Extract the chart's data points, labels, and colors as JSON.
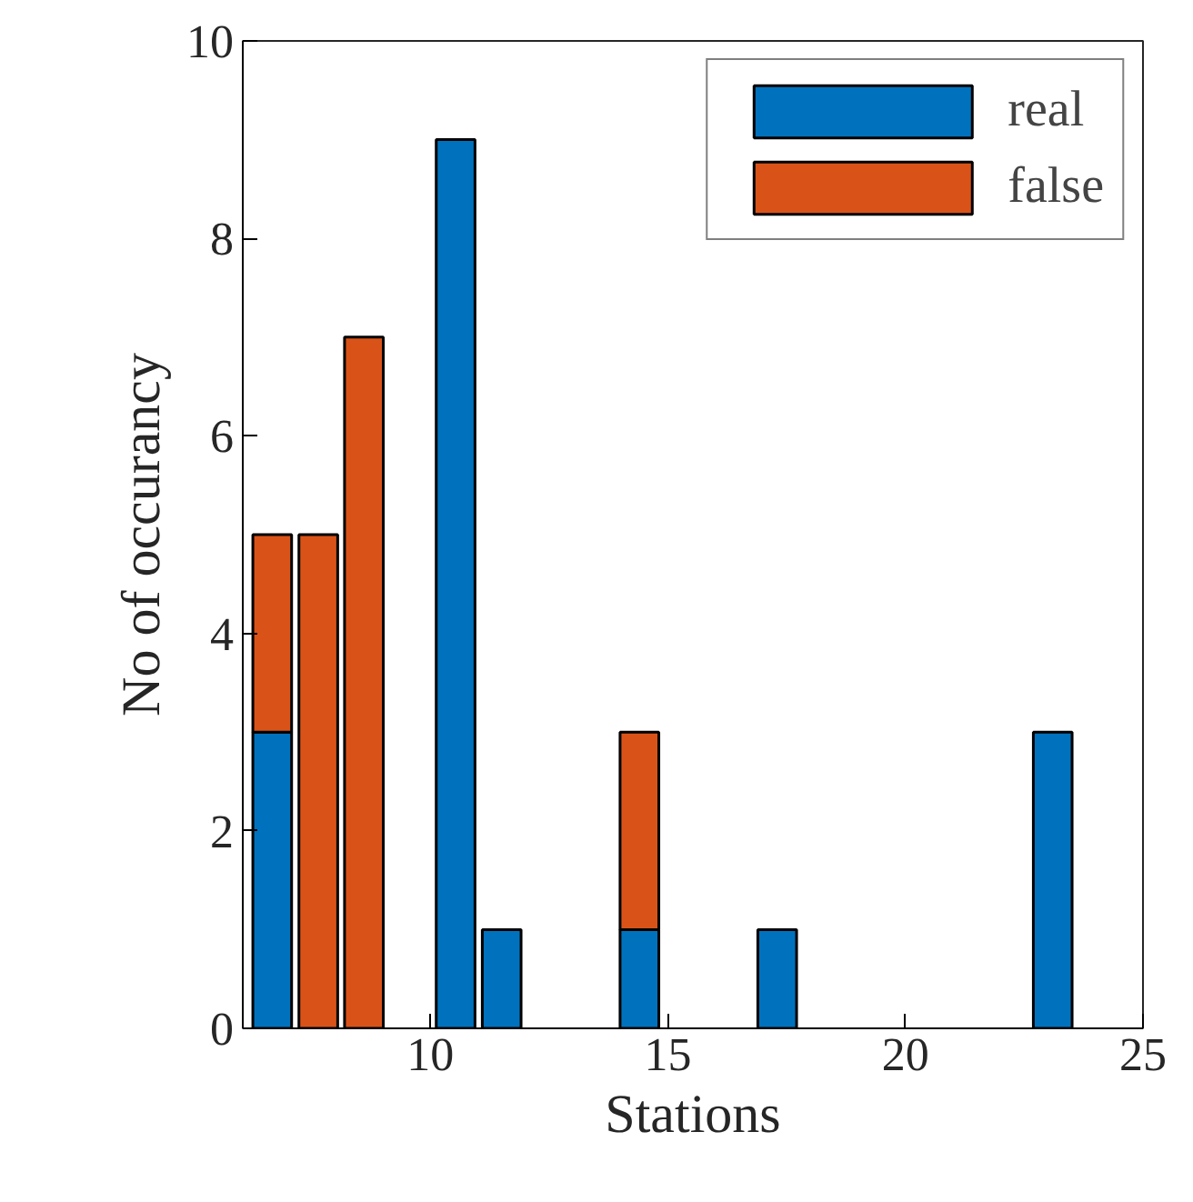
{
  "chart_data": {
    "type": "bar",
    "stacked": true,
    "xlabel": "Stations",
    "ylabel": "No of occurancy",
    "x": [
      6.67,
      7.64,
      8.6,
      10.53,
      11.5,
      14.4,
      17.3,
      23.1
    ],
    "series": [
      {
        "name": "real",
        "color": "#0072bd",
        "values": [
          3,
          0,
          0,
          9,
          1,
          1,
          1,
          3
        ]
      },
      {
        "name": "false",
        "color": "#d95319",
        "values": [
          2,
          5,
          7,
          0,
          0,
          2,
          0,
          0
        ]
      }
    ],
    "xlim": [
      6.05,
      25
    ],
    "xticks": [
      10,
      15,
      20,
      25
    ],
    "ylim": [
      0,
      10
    ],
    "yticks": [
      0,
      2,
      4,
      6,
      8,
      10
    ],
    "grid": false,
    "legend": "top right"
  }
}
